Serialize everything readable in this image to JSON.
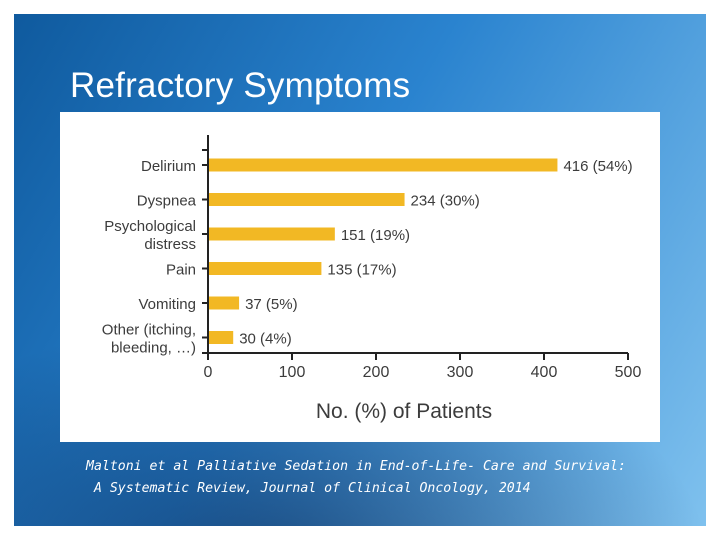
{
  "slide": {
    "title": "Refractory Symptoms",
    "citation_line1": "Maltoni et al Palliative Sedation in End-of-Life- Care and Survival:",
    "citation_line2": " A Systematic Review, Journal of Clinical Oncology, 2014"
  },
  "colors": {
    "bar": "#f2b824",
    "accent_bg": "#1f6fbf"
  },
  "chart_data": {
    "type": "bar",
    "orientation": "horizontal",
    "title": "",
    "xlabel": "No. (%) of Patients",
    "ylabel": "",
    "xlim": [
      0,
      500
    ],
    "xticks": [
      0,
      100,
      200,
      300,
      400,
      500
    ],
    "grid": false,
    "categories": [
      [
        "Delirium"
      ],
      [
        "Dyspnea"
      ],
      [
        "Psychological",
        "distress"
      ],
      [
        "Pain"
      ],
      [
        "Vomiting"
      ],
      [
        "Other (itching,",
        "bleeding, …)"
      ]
    ],
    "values": [
      416,
      234,
      151,
      135,
      37,
      30
    ],
    "data_labels": [
      "416 (54%)",
      "234 (30%)",
      "151 (19%)",
      "135 (17%)",
      "37 (5%)",
      "30 (4%)"
    ]
  }
}
